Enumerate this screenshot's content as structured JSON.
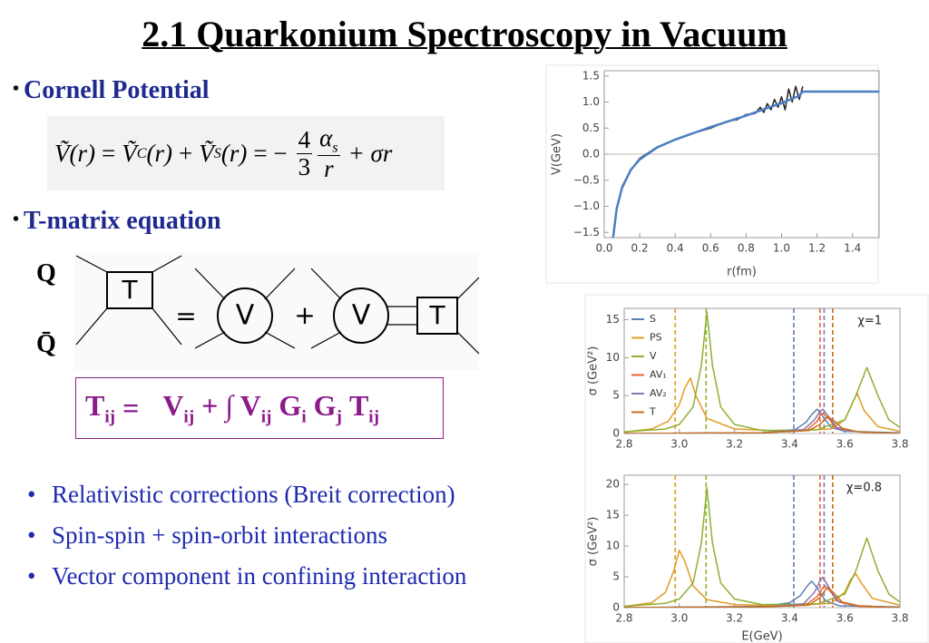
{
  "header": {
    "title": "2.1 Quarkonium Spectroscopy in Vacuum"
  },
  "sections": [
    {
      "label": "Cornell Potential"
    },
    {
      "label": "T-matrix equation"
    }
  ],
  "cornell_formula": {
    "lhs": "Ṽ(r)",
    "eq": "=",
    "term1": "Ṽ",
    "term1_sub": "C",
    "term1_arg": "(r)",
    "plus": "+",
    "term2": "Ṽ",
    "term2_sub": "S",
    "term2_arg": "(r)",
    "eq2": "= −",
    "frac1_num": "4",
    "frac1_den": "3",
    "frac2_num": "α",
    "frac2_num_sub": "s",
    "frac2_den": "r",
    "tail": "+ σr"
  },
  "diagram": {
    "quark": "Q",
    "antiquark": "Q̄",
    "t1": "T",
    "eq": "=",
    "v1": "V",
    "plus": "+",
    "v2": "V",
    "t2": "T"
  },
  "tmatrix_formula": [
    {
      "t": "T",
      "sub": "ij"
    },
    {
      "t": "="
    },
    {
      "t": "V",
      "sub": "ij"
    },
    {
      "t": "+ ∫ V",
      "sub": "ij"
    },
    {
      "t": "G",
      "sub": "i"
    },
    {
      "t": "G",
      "sub": "j"
    },
    {
      "t": "T",
      "sub": "ij"
    }
  ],
  "bullets": [
    "Relativistic corrections (Breit correction)",
    "Spin-spin + spin-orbit interactions",
    "Vector component in confining interaction"
  ],
  "chart_data": [
    {
      "type": "line",
      "xlabel": "r(fm)",
      "ylabel": "V(GeV)",
      "xlim": [
        0,
        1.55
      ],
      "ylim": [
        -1.6,
        1.6
      ],
      "xticks": [
        {
          "value": 0,
          "label": "0.0"
        },
        0.2,
        0.4,
        0.6,
        0.8,
        {
          "value": 1,
          "label": "1.0"
        },
        1.2,
        1.4
      ],
      "yticks": [
        {
          "value": -1.5,
          "label": "−1.5"
        },
        {
          "value": -1,
          "label": "−1.0"
        },
        {
          "value": -0.5,
          "label": "−0.5"
        },
        {
          "value": 0,
          "label": "0.0"
        },
        0.5,
        {
          "value": 1,
          "label": "1.0"
        },
        1.5
      ],
      "series": [
        {
          "color": "#222222",
          "x": [
            0.1,
            0.15,
            0.2,
            0.3,
            0.4,
            0.5,
            0.6,
            0.7,
            0.75,
            0.8,
            0.85,
            0.88,
            0.9,
            0.92,
            0.94,
            0.96,
            0.98,
            1.0,
            1.02,
            1.04,
            1.06,
            1.08,
            1.1,
            1.12
          ],
          "values": [
            -0.62,
            -0.3,
            -0.08,
            0.14,
            0.28,
            0.4,
            0.5,
            0.64,
            0.66,
            0.76,
            0.78,
            0.9,
            0.8,
            0.97,
            0.85,
            1.05,
            0.9,
            1.1,
            0.85,
            1.25,
            1.0,
            1.3,
            1.05,
            1.3
          ]
        },
        {
          "color": "#4a7fc1",
          "x": [
            0.05,
            0.07,
            0.1,
            0.15,
            0.2,
            0.3,
            0.4,
            0.5,
            0.6,
            0.7,
            0.8,
            0.9,
            1.0,
            1.1,
            1.12,
            1.55
          ],
          "values": [
            -1.6,
            -1.05,
            -0.65,
            -0.3,
            -0.1,
            0.13,
            0.28,
            0.4,
            0.52,
            0.63,
            0.74,
            0.86,
            0.98,
            1.12,
            1.2,
            1.2
          ]
        }
      ]
    },
    {
      "type": "line",
      "ylabel": "σ (GeV²)",
      "annotation": "χ=1",
      "legend": "upper left",
      "xlim": [
        2.8,
        3.8
      ],
      "ylim": [
        0,
        16.5
      ],
      "xticks": [
        2.8,
        {
          "value": 3,
          "label": "3.0"
        },
        3.2,
        3.4,
        3.6,
        3.8
      ],
      "yticks": [
        0,
        5,
        10,
        15
      ],
      "series": [
        {
          "name": "S",
          "color": "#5e81b5",
          "vline": 3.415,
          "x": [
            2.8,
            3.3,
            3.42,
            3.46,
            3.48,
            3.5,
            3.52,
            3.55,
            3.6,
            3.8
          ],
          "values": [
            0,
            0.1,
            0.5,
            1.5,
            2.5,
            3.2,
            2.3,
            0.8,
            0.3,
            0.1
          ]
        },
        {
          "name": "PS",
          "color": "#e19c24",
          "vline": 2.985,
          "x": [
            2.8,
            2.9,
            2.96,
            3.0,
            3.02,
            3.04,
            3.06,
            3.1,
            3.2,
            3.4,
            3.55,
            3.6,
            3.63,
            3.645,
            3.67,
            3.72,
            3.8
          ],
          "values": [
            0.2,
            0.6,
            1.6,
            3.8,
            6,
            7.3,
            5,
            2,
            0.6,
            0.3,
            0.6,
            1.8,
            4.2,
            5.3,
            3,
            0.9,
            0.3
          ]
        },
        {
          "name": "V",
          "color": "#8fb032",
          "vline": 3.097,
          "x": [
            2.8,
            2.95,
            3.0,
            3.05,
            3.08,
            3.1,
            3.12,
            3.15,
            3.2,
            3.3,
            3.5,
            3.6,
            3.64,
            3.68,
            3.72,
            3.76,
            3.8
          ],
          "values": [
            0.2,
            0.6,
            1.2,
            3.5,
            9,
            16,
            9,
            3.5,
            1.2,
            0.4,
            0.5,
            1.8,
            5,
            8.7,
            5,
            1.8,
            0.8
          ]
        },
        {
          "name": "AV₁",
          "color": "#eb6235",
          "vline": 3.51,
          "x": [
            2.8,
            3.3,
            3.46,
            3.5,
            3.51,
            3.52,
            3.54,
            3.57,
            3.65,
            3.8
          ],
          "values": [
            0,
            0.1,
            0.4,
            1.6,
            2.4,
            2.7,
            2,
            0.7,
            0.2,
            0
          ]
        },
        {
          "name": "AV₂",
          "color": "#8778b3",
          "vline": 3.525,
          "x": [
            2.8,
            3.3,
            3.45,
            3.49,
            3.51,
            3.52,
            3.54,
            3.57,
            3.65,
            3.8
          ],
          "values": [
            0,
            0.1,
            0.5,
            1.8,
            2.9,
            3.2,
            2.3,
            0.8,
            0.2,
            0
          ]
        },
        {
          "name": "T",
          "color": "#c56e1a",
          "vline": 3.556,
          "x": [
            2.8,
            3.3,
            3.47,
            3.51,
            3.53,
            3.54,
            3.56,
            3.59,
            3.65,
            3.8
          ],
          "values": [
            0,
            0.1,
            0.4,
            1.2,
            2,
            2.2,
            1.7,
            0.7,
            0.2,
            0
          ]
        }
      ]
    },
    {
      "type": "line",
      "xlabel": "E(GeV)",
      "ylabel": "σ (GeV²)",
      "annotation": "χ=0.8",
      "xlim": [
        2.8,
        3.8
      ],
      "ylim": [
        0,
        21.5
      ],
      "xticks": [
        2.8,
        {
          "value": 3,
          "label": "3.0"
        },
        3.2,
        3.4,
        3.6,
        3.8
      ],
      "yticks": [
        0,
        5,
        10,
        15,
        20
      ],
      "series": [
        {
          "color": "#5e81b5",
          "vline": 3.415,
          "x": [
            2.8,
            3.3,
            3.4,
            3.44,
            3.46,
            3.48,
            3.5,
            3.53,
            3.58,
            3.8
          ],
          "values": [
            0,
            0.2,
            0.8,
            2,
            3.3,
            4.3,
            3.2,
            1.1,
            0.3,
            0.1
          ]
        },
        {
          "color": "#e19c24",
          "vline": 2.985,
          "x": [
            2.8,
            2.9,
            2.95,
            2.98,
            3.0,
            3.02,
            3.05,
            3.1,
            3.2,
            3.4,
            3.55,
            3.6,
            3.62,
            3.64,
            3.66,
            3.7,
            3.8
          ],
          "values": [
            0.2,
            0.8,
            2.5,
            6,
            9.3,
            7.5,
            3.5,
            1.3,
            0.5,
            0.3,
            0.7,
            2.5,
            4.5,
            5.5,
            4,
            1.5,
            0.4
          ]
        },
        {
          "color": "#8fb032",
          "vline": 3.097,
          "x": [
            2.8,
            2.95,
            3.0,
            3.05,
            3.08,
            3.1,
            3.12,
            3.15,
            3.2,
            3.3,
            3.5,
            3.6,
            3.64,
            3.68,
            3.72,
            3.76,
            3.8
          ],
          "values": [
            0.2,
            0.7,
            1.4,
            4,
            10.5,
            19.5,
            10.5,
            4,
            1.4,
            0.5,
            0.6,
            2.2,
            6,
            11.3,
            6,
            2.2,
            0.9
          ]
        },
        {
          "color": "#eb6235",
          "vline": 3.51,
          "x": [
            2.8,
            3.3,
            3.46,
            3.5,
            3.52,
            3.53,
            3.55,
            3.58,
            3.65,
            3.8
          ],
          "values": [
            0,
            0.1,
            0.5,
            1.8,
            3.2,
            3.5,
            2.5,
            0.9,
            0.2,
            0
          ]
        },
        {
          "color": "#8778b3",
          "vline": 3.525,
          "x": [
            2.8,
            3.3,
            3.45,
            3.49,
            3.51,
            3.52,
            3.54,
            3.57,
            3.65,
            3.8
          ],
          "values": [
            0,
            0.1,
            0.6,
            2.5,
            4.3,
            4.9,
            3.5,
            1.1,
            0.3,
            0
          ]
        },
        {
          "color": "#c56e1a",
          "vline": 3.556,
          "x": [
            2.8,
            3.3,
            3.47,
            3.51,
            3.53,
            3.54,
            3.56,
            3.59,
            3.65,
            3.8
          ],
          "values": [
            0,
            0.1,
            0.4,
            1.6,
            2.9,
            3.2,
            2.4,
            0.9,
            0.3,
            0
          ]
        }
      ]
    }
  ]
}
